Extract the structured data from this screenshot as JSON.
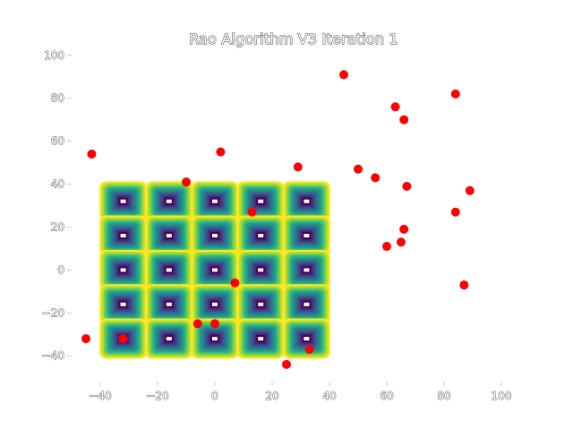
{
  "chart_data": {
    "type": "scatter",
    "title": "Rao Algorithm V3 Iteration 1",
    "xlabel": "",
    "ylabel": "",
    "xlim": [
      -50,
      105
    ],
    "ylim": [
      -52,
      102
    ],
    "xticks": [
      -40,
      -20,
      0,
      20,
      40,
      60,
      80,
      100
    ],
    "yticks": [
      -40,
      -20,
      0,
      20,
      40,
      60,
      80,
      100
    ],
    "xtick_labels": [
      "−40",
      "−20",
      "0",
      "20",
      "40",
      "60",
      "80",
      "100"
    ],
    "ytick_labels": [
      "−40",
      "−20",
      "0",
      "20",
      "40",
      "60",
      "80",
      "100"
    ],
    "grid": false,
    "contour_background": {
      "colormap": "viridis",
      "centers_x": [
        -32,
        -16,
        0,
        16,
        32
      ],
      "centers_y": [
        32,
        16,
        0,
        -16,
        -32
      ]
    },
    "series": [
      {
        "color": "#ff0000",
        "points": [
          [
            -43,
            54
          ],
          [
            2,
            55
          ],
          [
            -10,
            41
          ],
          [
            29,
            48
          ],
          [
            45,
            91
          ],
          [
            63,
            76
          ],
          [
            66,
            70
          ],
          [
            84,
            82
          ],
          [
            50,
            47
          ],
          [
            56,
            43
          ],
          [
            67,
            39
          ],
          [
            89,
            37
          ],
          [
            84,
            27
          ],
          [
            13,
            27
          ],
          [
            66,
            19
          ],
          [
            60,
            11
          ],
          [
            65,
            13
          ],
          [
            87,
            -7
          ],
          [
            7,
            -6
          ],
          [
            -6,
            -25
          ],
          [
            0,
            -25
          ],
          [
            -45,
            -32
          ],
          [
            -32,
            -32
          ],
          [
            33,
            -37
          ],
          [
            25,
            -44
          ]
        ]
      }
    ]
  }
}
